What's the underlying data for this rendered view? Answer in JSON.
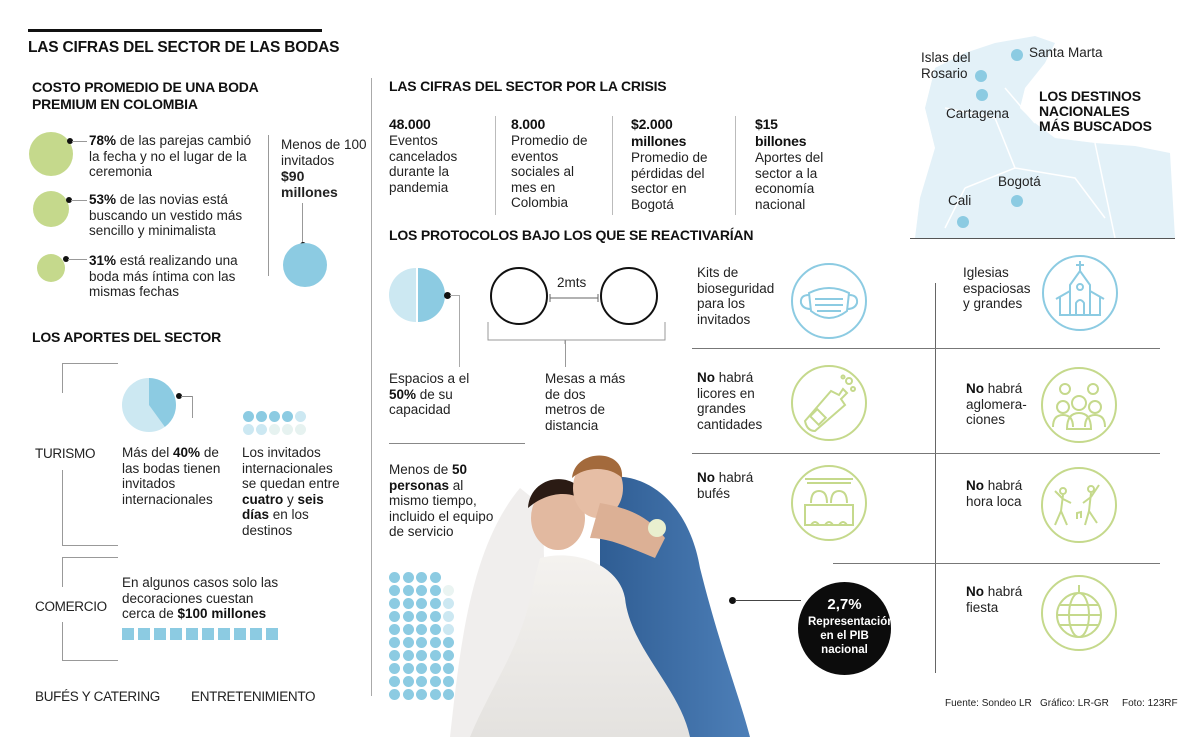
{
  "title": "LAS CIFRAS DEL SECTOR DE LAS BODAS",
  "costo": {
    "heading": "COSTO PROMEDIO DE UNA BODA PREMIUM EN COLOMBIA",
    "items": [
      {
        "value": "78%",
        "text": " de las parejas cambió la fecha y no el lugar de la ceremonia"
      },
      {
        "value": "53%",
        "text": " de las novias está buscando un vestido más sencillo y minimalista"
      },
      {
        "value": "31%",
        "text": " está realizando una boda más íntima con las mismas fechas"
      }
    ],
    "invitados": {
      "text": "Menos de 100 invitados",
      "value": "$90 millones"
    }
  },
  "aportes": {
    "heading": "LOS APORTES DEL SECTOR",
    "turismo": {
      "label": "TURISMO",
      "pie_percent": 40,
      "pie_text_pre": "Más del ",
      "pie_value": "40%",
      "pie_text_post": " de las bodas tienen invitados internacionales",
      "days_pre": "Los invitados internacionales se quedan entre ",
      "days_a": "cuatro",
      "days_mid": " y ",
      "days_b": "seis días",
      "days_post": " en los destinos"
    },
    "comercio": {
      "label": "COMERCIO",
      "text_pre": "En algunos casos solo las decoraciones cuestan cerca de ",
      "value": "$100 millones",
      "squares": 10
    },
    "others": [
      "BUFÉS  Y CATERING",
      "ENTRETENIMIENTO"
    ]
  },
  "crisis": {
    "heading": "LAS CIFRAS DEL SECTOR POR LA CRISIS",
    "stats": [
      {
        "value": "48.000",
        "text": "Eventos cancelados durante la pandemia"
      },
      {
        "value": "8.000",
        "text": "Promedio de eventos sociales al mes en Colombia"
      },
      {
        "value": "$2.000 millones",
        "text": "Promedio de pérdidas del sector en Bogotá"
      },
      {
        "value": "$15 billones",
        "text": "Aportes del sector a la economía nacional"
      }
    ]
  },
  "protocolos": {
    "heading": "LOS PROTOCOLOS BAJO LOS QUE SE REACTIVARÍAN",
    "capacidad": {
      "pre": "Espacios a el ",
      "value": "50%",
      "post": " de su capacidad",
      "percent": 50
    },
    "mesas": {
      "distance": "2mts",
      "text": "Mesas a más de dos metros de distancia"
    },
    "personas": {
      "pre": "Menos de ",
      "value": "50 personas",
      "post": " al mismo tiempo, incluido el equipo de servicio",
      "count": 50
    },
    "pib": {
      "value": "2,7%",
      "text": "Representación en el PIB nacional"
    },
    "items": [
      {
        "bold": "",
        "text": "Kits de bioseguridad para los invitados",
        "icon": "face-mask-icon",
        "color": "#8ccbe2"
      },
      {
        "bold": "",
        "text": "Iglesias espaciosas y grandes",
        "icon": "church-icon",
        "color": "#8ccbe2"
      },
      {
        "bold": "No",
        "text": " habrá licores en grandes cantidades",
        "icon": "champagne-bottle-icon",
        "color": "#c5d98c"
      },
      {
        "bold": "No",
        "text": " habrá aglomera-ciones",
        "icon": "crowd-icon",
        "color": "#c5d98c"
      },
      {
        "bold": "No",
        "text": " habrá bufés",
        "icon": "buffet-icon",
        "color": "#c5d98c"
      },
      {
        "bold": "No",
        "text": " habrá hora loca",
        "icon": "dancing-people-icon",
        "color": "#c5d98c"
      },
      {
        "bold": "No",
        "text": " habrá fiesta",
        "icon": "disco-ball-icon",
        "color": "#c5d98c"
      }
    ]
  },
  "mapa": {
    "heading": "LOS DESTINOS NACIONALES MÁS BUSCADOS",
    "cities": [
      "Santa Marta",
      "Islas del Rosario",
      "Cartagena",
      "Bogotá",
      "Cali"
    ]
  },
  "footer": {
    "fuente": "Fuente: Sondeo LR",
    "grafico": "Gráfico: LR-GR",
    "foto": "Foto: 123RF"
  },
  "colors": {
    "green": "#c5d98c",
    "blue": "#8ccbe2",
    "light_blue": "#cce8f2",
    "map": "#e3f1f8"
  }
}
